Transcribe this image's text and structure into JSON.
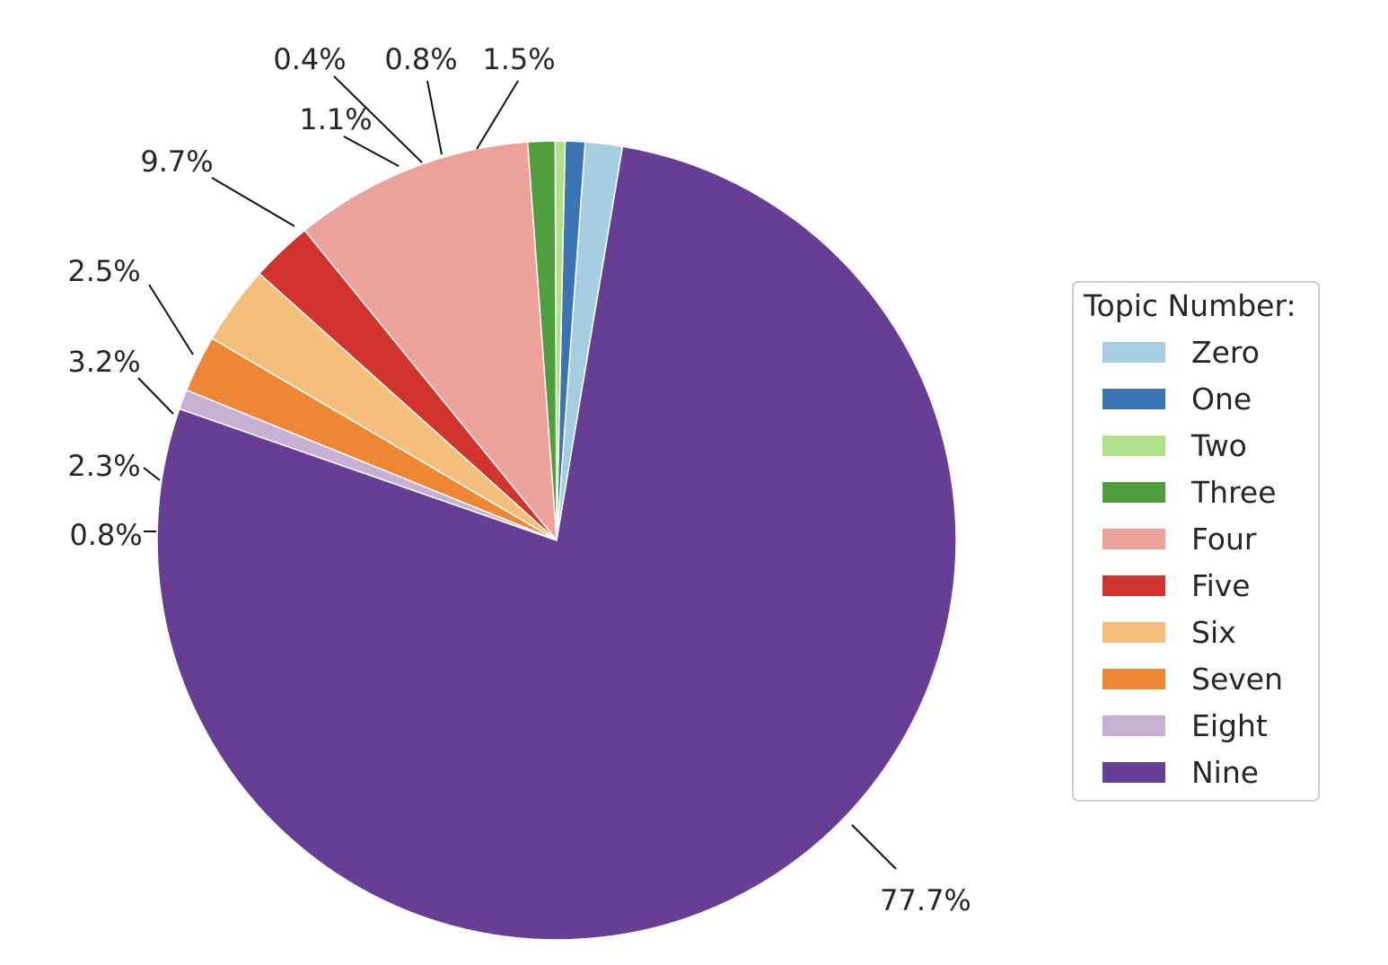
{
  "chart_data": {
    "type": "pie",
    "legend": {
      "title": "Topic Number:",
      "placement": "right"
    },
    "slices": [
      {
        "label": "Zero",
        "value": 1.5,
        "pct_label": "1.5%",
        "color": "#a6cee3"
      },
      {
        "label": "One",
        "value": 0.8,
        "pct_label": "0.8%",
        "color": "#3a74b2"
      },
      {
        "label": "Two",
        "value": 0.4,
        "pct_label": "0.4%",
        "color": "#b2df8a"
      },
      {
        "label": "Three",
        "value": 1.1,
        "pct_label": "1.1%",
        "color": "#4f9f3f"
      },
      {
        "label": "Four",
        "value": 9.7,
        "pct_label": "9.7%",
        "color": "#eca19a"
      },
      {
        "label": "Five",
        "value": 2.5,
        "pct_label": "2.5%",
        "color": "#d0342c"
      },
      {
        "label": "Six",
        "value": 3.2,
        "pct_label": "3.2%",
        "color": "#f5bf7b"
      },
      {
        "label": "Seven",
        "value": 2.3,
        "pct_label": "2.3%",
        "color": "#ee8734"
      },
      {
        "label": "Eight",
        "value": 0.8,
        "pct_label": "0.8%",
        "color": "#c6b1d5"
      },
      {
        "label": "Nine",
        "value": 77.7,
        "pct_label": "77.7%",
        "color": "#663f95"
      }
    ]
  }
}
